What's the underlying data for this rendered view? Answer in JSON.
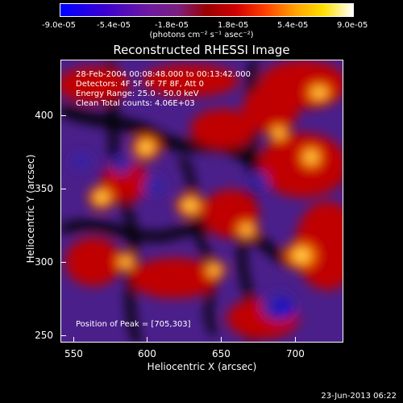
{
  "colorbar": {
    "tick_labels": [
      "-9.0e-05",
      "-5.4e-05",
      "-1.8e-05",
      "1.8e-05",
      "5.4e-05",
      "9.0e-05"
    ],
    "unit_label": "(photons cm⁻² s⁻¹ asec⁻²)"
  },
  "title": "Reconstructed RHESSI Image",
  "info": {
    "time_range": "28-Feb-2004 00:08:48.000 to 00:13:42.000",
    "detectors": "Detectors: 4F 5F 6F 7F 8F, Att 0",
    "energy_range": "Energy Range: 25.0 - 50.0 keV",
    "clean": "Clean    Total counts: 4.06E+03",
    "peak": "Position of Peak = [705,303]"
  },
  "axes": {
    "xlabel": "Heliocentric X (arcsec)",
    "ylabel": "Heliocentric Y (arcsec)",
    "xticks": [
      "550",
      "600",
      "650",
      "700"
    ],
    "yticks": [
      "400",
      "350",
      "300",
      "250"
    ]
  },
  "timestamp": "23-Jun-2013 06:22"
}
